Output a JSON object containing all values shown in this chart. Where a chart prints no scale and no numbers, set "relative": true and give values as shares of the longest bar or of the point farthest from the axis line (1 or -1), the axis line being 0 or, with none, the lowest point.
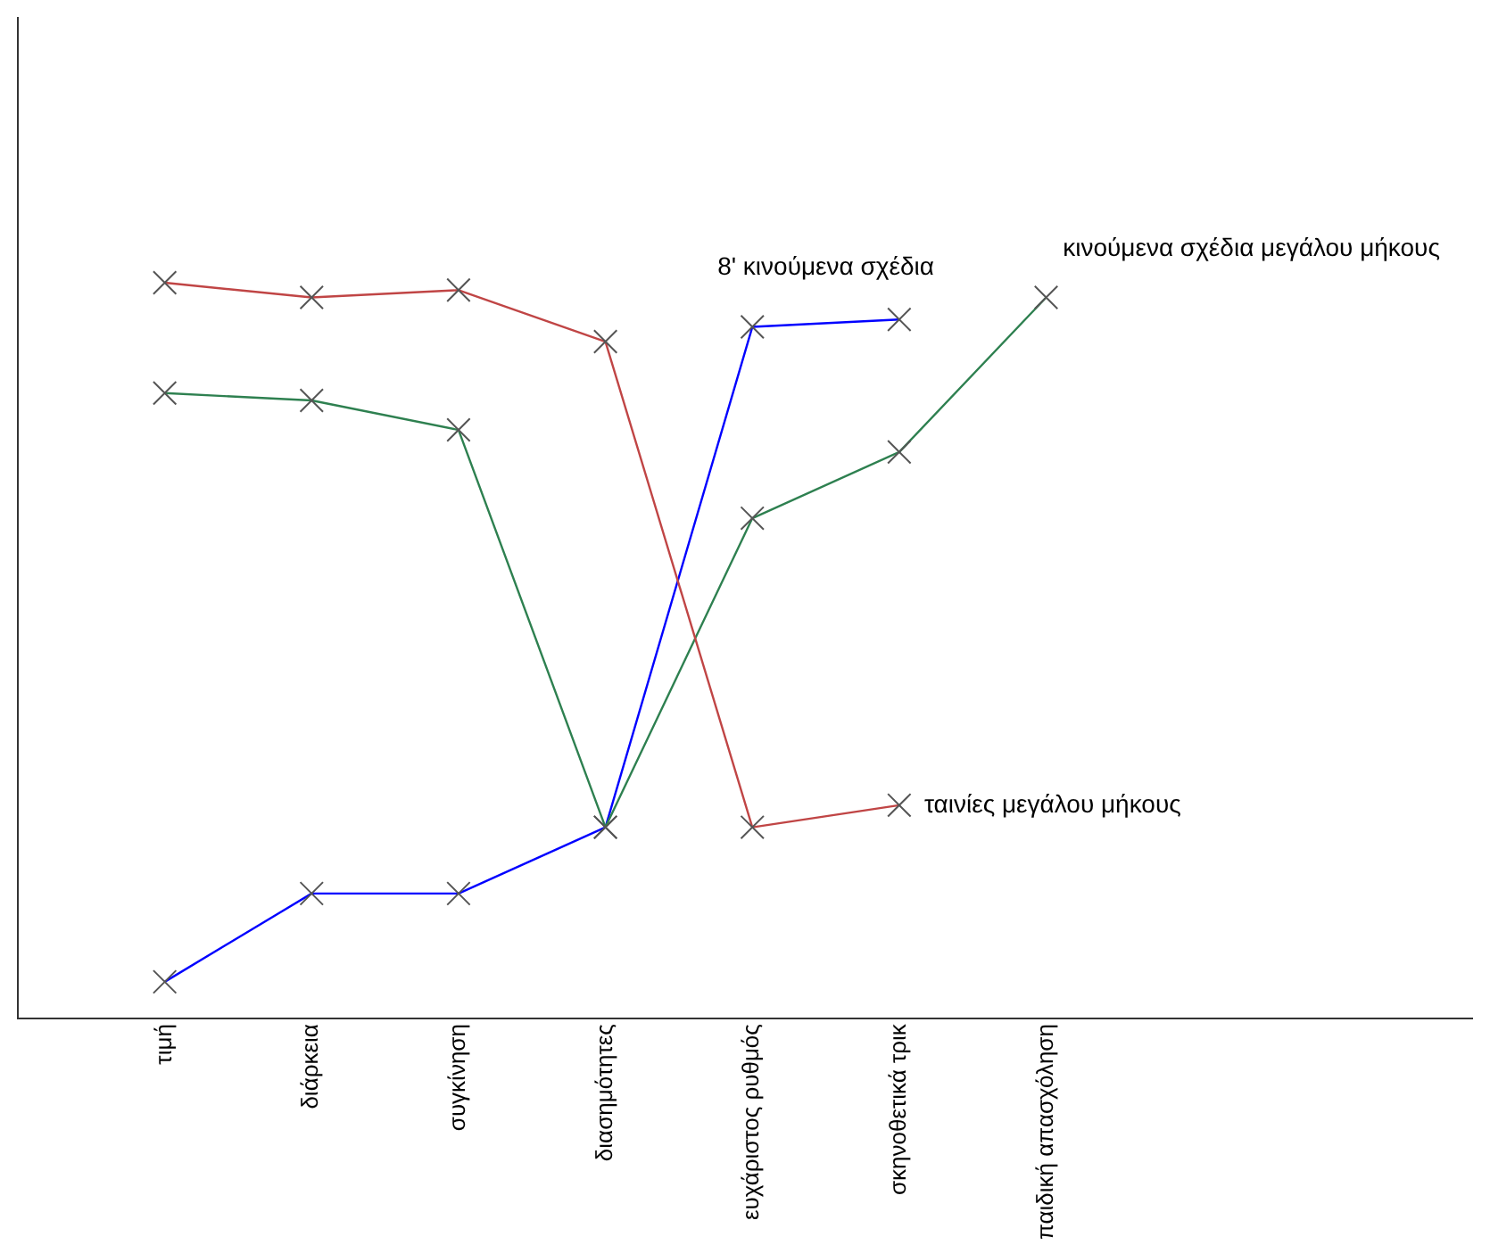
{
  "chart_data": {
    "type": "line",
    "relative": true,
    "marker": "cross",
    "grid": false,
    "legend": false,
    "categories": [
      "τιμή",
      "διάρκεια",
      "συγκίνηση",
      "διασημότητες",
      "ευχάριστος ρυθμός",
      "σκηνοθετικά τρικ",
      "παιδική απασχόληση"
    ],
    "series": [
      {
        "name": "ταινίες μεγάλου μήκους",
        "color": "#c04545",
        "values": [
          1,
          0.98,
          0.99,
          0.92,
          0.26,
          0.29,
          null
        ]
      },
      {
        "name": "κινούμενα σχέδια μεγάλου μήκους",
        "color": "#2e8050",
        "values": [
          0.85,
          0.84,
          0.8,
          0.26,
          0.68,
          0.77,
          0.98
        ]
      },
      {
        "name": "8' κινούμενα σχέδια",
        "color": "#0000ff",
        "values": [
          0.05,
          0.17,
          0.17,
          0.26,
          0.94,
          0.95,
          null
        ]
      }
    ]
  }
}
